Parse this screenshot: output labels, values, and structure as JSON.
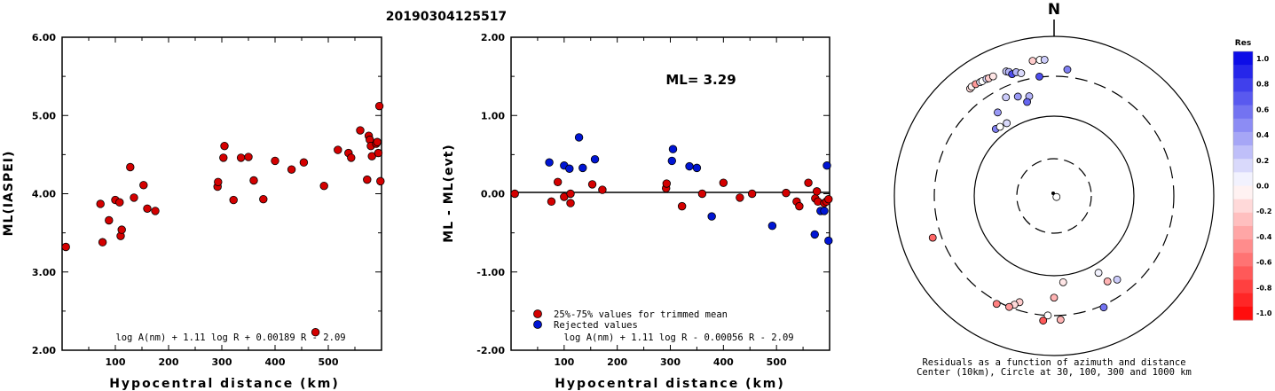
{
  "title": "20190304125517",
  "chart_data": [
    {
      "type": "scatter",
      "xlabel": "Hypocentral distance (km)",
      "ylabel": "ML(IASPEI)",
      "xlim": [
        0,
        600
      ],
      "ylim": [
        2.0,
        6.0
      ],
      "x_ticks": [
        "100",
        "200",
        "300",
        "400",
        "500"
      ],
      "y_ticks": [
        "2.00",
        "3.00",
        "4.00",
        "5.00",
        "6.00"
      ],
      "formula": "log A(nm) + 1.11 log R + 0.00189 R - 2.09",
      "marker_color": "#d40000",
      "points": [
        [
          7,
          3.32
        ],
        [
          72,
          3.87
        ],
        [
          76,
          3.38
        ],
        [
          88,
          3.66
        ],
        [
          100,
          3.92
        ],
        [
          108,
          3.89
        ],
        [
          110,
          3.46
        ],
        [
          112,
          3.54
        ],
        [
          128,
          4.34
        ],
        [
          135,
          3.95
        ],
        [
          153,
          4.11
        ],
        [
          160,
          3.81
        ],
        [
          175,
          3.78
        ],
        [
          292,
          4.09
        ],
        [
          293,
          4.15
        ],
        [
          303,
          4.46
        ],
        [
          305,
          4.61
        ],
        [
          322,
          3.92
        ],
        [
          336,
          4.46
        ],
        [
          350,
          4.47
        ],
        [
          360,
          4.17
        ],
        [
          378,
          3.93
        ],
        [
          400,
          4.42
        ],
        [
          431,
          4.31
        ],
        [
          454,
          4.4
        ],
        [
          476,
          2.23
        ],
        [
          492,
          4.1
        ],
        [
          518,
          4.56
        ],
        [
          538,
          4.52
        ],
        [
          543,
          4.46
        ],
        [
          560,
          4.81
        ],
        [
          573,
          4.18
        ],
        [
          576,
          4.74
        ],
        [
          578,
          4.69
        ],
        [
          580,
          4.61
        ],
        [
          582,
          4.48
        ],
        [
          590,
          4.64
        ],
        [
          592,
          4.66
        ],
        [
          594,
          4.52
        ],
        [
          596,
          5.12
        ],
        [
          598,
          4.16
        ]
      ]
    },
    {
      "type": "scatter",
      "xlabel": "Hypocentral distance (km)",
      "ylabel": "ML - ML(evt)",
      "xlim": [
        0,
        600
      ],
      "ylim": [
        -2.0,
        2.0
      ],
      "x_ticks": [
        "100",
        "200",
        "300",
        "400",
        "500"
      ],
      "y_ticks": [
        "-2.00",
        "-1.00",
        "0.00",
        "1.00",
        "2.00"
      ],
      "annotation": "ML= 3.29",
      "formula": "log A(nm) + 1.11 log R - 0.00056 R - 2.09",
      "legend": [
        "25%-75% values for trimmed mean",
        "Rejected values"
      ],
      "series": [
        {
          "name": "25%-75% values for trimmed mean",
          "color": "#d40000",
          "points": [
            [
              7,
              0.0
            ],
            [
              76,
              -0.1
            ],
            [
              88,
              0.15
            ],
            [
              100,
              -0.04
            ],
            [
              112,
              -0.12
            ],
            [
              112,
              0.0
            ],
            [
              153,
              0.12
            ],
            [
              172,
              0.05
            ],
            [
              292,
              0.07
            ],
            [
              293,
              0.13
            ],
            [
              322,
              -0.16
            ],
            [
              360,
              0.0
            ],
            [
              400,
              0.14
            ],
            [
              431,
              -0.05
            ],
            [
              454,
              0.0
            ],
            [
              518,
              0.01
            ],
            [
              538,
              -0.1
            ],
            [
              543,
              -0.16
            ],
            [
              560,
              0.14
            ],
            [
              573,
              -0.06
            ],
            [
              576,
              0.03
            ],
            [
              578,
              -0.1
            ],
            [
              590,
              -0.12
            ],
            [
              594,
              -0.1
            ],
            [
              598,
              -0.07
            ]
          ]
        },
        {
          "name": "Rejected values",
          "color": "#0015d4",
          "points": [
            [
              72,
              0.4
            ],
            [
              100,
              0.36
            ],
            [
              110,
              0.32
            ],
            [
              128,
              0.72
            ],
            [
              135,
              0.33
            ],
            [
              158,
              0.44
            ],
            [
              303,
              0.42
            ],
            [
              305,
              0.57
            ],
            [
              336,
              0.35
            ],
            [
              350,
              0.33
            ],
            [
              378,
              -0.29
            ],
            [
              492,
              -0.41
            ],
            [
              572,
              -0.52
            ],
            [
              583,
              -0.22
            ],
            [
              590,
              -0.22
            ],
            [
              595,
              0.36
            ],
            [
              598,
              -0.6
            ]
          ]
        }
      ]
    },
    {
      "type": "scatter",
      "projection": "polar",
      "north_label": "N",
      "caption": [
        "Residuals as a function of azimuth and distance",
        "Center (10km), Circle at 30, 100, 300 and 1000 km"
      ],
      "rings_km": [
        30,
        100,
        300,
        1000
      ],
      "colorbar": {
        "title": "Res",
        "ticks": [
          "1.0",
          "0.8",
          "0.6",
          "0.4",
          "0.2",
          "0.0",
          "-0.2",
          "-0.4",
          "-0.6",
          "-0.8",
          "-1.0"
        ],
        "positive_color": "#0000e6",
        "negative_color": "#ff0000"
      },
      "points": [
        {
          "az": 322,
          "dist_km": 590,
          "res": -0.15
        },
        {
          "az": 323,
          "dist_km": 600,
          "res": -0.05
        },
        {
          "az": 325,
          "dist_km": 595,
          "res": -0.4
        },
        {
          "az": 327,
          "dist_km": 580,
          "res": 0.1
        },
        {
          "az": 328,
          "dist_km": 575,
          "res": 0.0
        },
        {
          "az": 330,
          "dist_km": 570,
          "res": 0.15
        },
        {
          "az": 331,
          "dist_km": 560,
          "res": -0.2
        },
        {
          "az": 333,
          "dist_km": 555,
          "res": -0.1
        },
        {
          "az": 339,
          "dist_km": 540,
          "res": 0.2
        },
        {
          "az": 340,
          "dist_km": 515,
          "res": 0.3
        },
        {
          "az": 341,
          "dist_km": 460,
          "res": 0.7
        },
        {
          "az": 343,
          "dist_km": 470,
          "res": 0.3
        },
        {
          "az": 345,
          "dist_km": 430,
          "res": 0.15
        },
        {
          "az": 351,
          "dist_km": 600,
          "res": -0.2
        },
        {
          "az": 354,
          "dist_km": 600,
          "res": 0.0
        },
        {
          "az": 356,
          "dist_km": 595,
          "res": 0.2
        },
        {
          "az": 6,
          "dist_km": 430,
          "res": 0.5
        },
        {
          "az": 353,
          "dist_km": 310,
          "res": 0.7
        },
        {
          "az": 334,
          "dist_km": 250,
          "res": 0.2
        },
        {
          "az": 340,
          "dist_km": 230,
          "res": 0.4
        },
        {
          "az": 346,
          "dist_km": 215,
          "res": 0.3
        },
        {
          "az": 344,
          "dist_km": 190,
          "res": 0.6
        },
        {
          "az": 326,
          "dist_km": 205,
          "res": 0.4
        },
        {
          "az": 319,
          "dist_km": 145,
          "res": 0.5
        },
        {
          "az": 327,
          "dist_km": 135,
          "res": 0.15
        },
        {
          "az": 322,
          "dist_km": 140,
          "res": 0.0
        },
        {
          "az": 113,
          "dist_km": 5,
          "res": 0.0
        },
        {
          "az": 251,
          "dist_km": 450,
          "res": -0.6
        },
        {
          "az": 198,
          "dist_km": 260,
          "res": -0.2
        },
        {
          "az": 200,
          "dist_km": 280,
          "res": -0.15
        },
        {
          "az": 202,
          "dist_km": 300,
          "res": -0.4
        },
        {
          "az": 208,
          "dist_km": 345,
          "res": -0.5
        },
        {
          "az": 183,
          "dist_km": 300,
          "res": 0.0
        },
        {
          "az": 174,
          "dist_km": 135,
          "res": -0.1
        },
        {
          "az": 150,
          "dist_km": 145,
          "res": 0.05
        },
        {
          "az": 180,
          "dist_km": 210,
          "res": -0.3
        },
        {
          "az": 177,
          "dist_km": 375,
          "res": -0.3
        },
        {
          "az": 148,
          "dist_km": 205,
          "res": -0.3
        },
        {
          "az": 143,
          "dist_km": 225,
          "res": 0.2
        },
        {
          "az": 156,
          "dist_km": 340,
          "res": 0.55
        },
        {
          "az": 185,
          "dist_km": 395,
          "res": -0.65
        }
      ]
    }
  ]
}
